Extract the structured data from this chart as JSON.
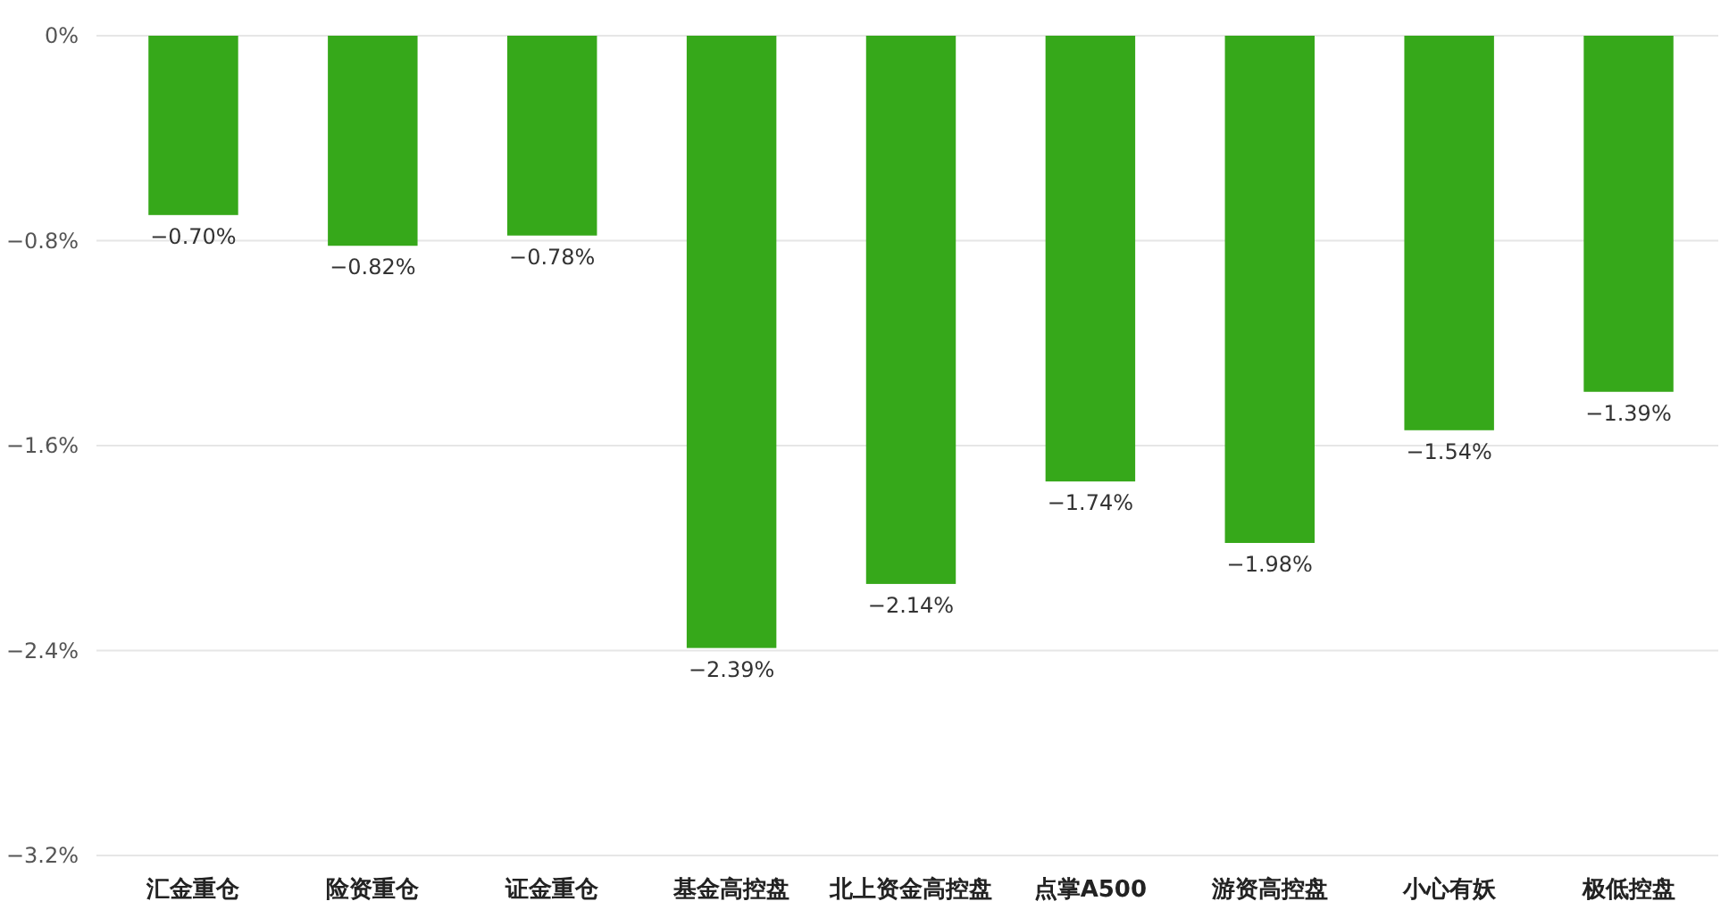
{
  "chart_data": {
    "type": "bar",
    "categories": [
      "汇金重仓",
      "险资重仓",
      "证金重仓",
      "基金高控盘",
      "北上资金高控盘",
      "点掌A500",
      "游资高控盘",
      "小心有妖",
      "极低控盘"
    ],
    "values": [
      -0.7,
      -0.82,
      -0.78,
      -2.39,
      -2.14,
      -1.74,
      -1.98,
      -1.54,
      -1.39
    ],
    "value_labels": [
      "−0.70%",
      "−0.82%",
      "−0.78%",
      "−2.39%",
      "−2.14%",
      "−1.74%",
      "−1.98%",
      "−1.54%",
      "−1.39%"
    ],
    "color": "#36a81a",
    "ylim": [
      -3.2,
      0
    ],
    "yticks": [
      {
        "value": 0,
        "label": "0%"
      },
      {
        "value": -0.8,
        "label": "−0.8%"
      },
      {
        "value": -1.6,
        "label": "−1.6%"
      },
      {
        "value": -2.4,
        "label": "−2.4%"
      },
      {
        "value": -3.2,
        "label": "−3.2%"
      }
    ],
    "grid": "y"
  }
}
